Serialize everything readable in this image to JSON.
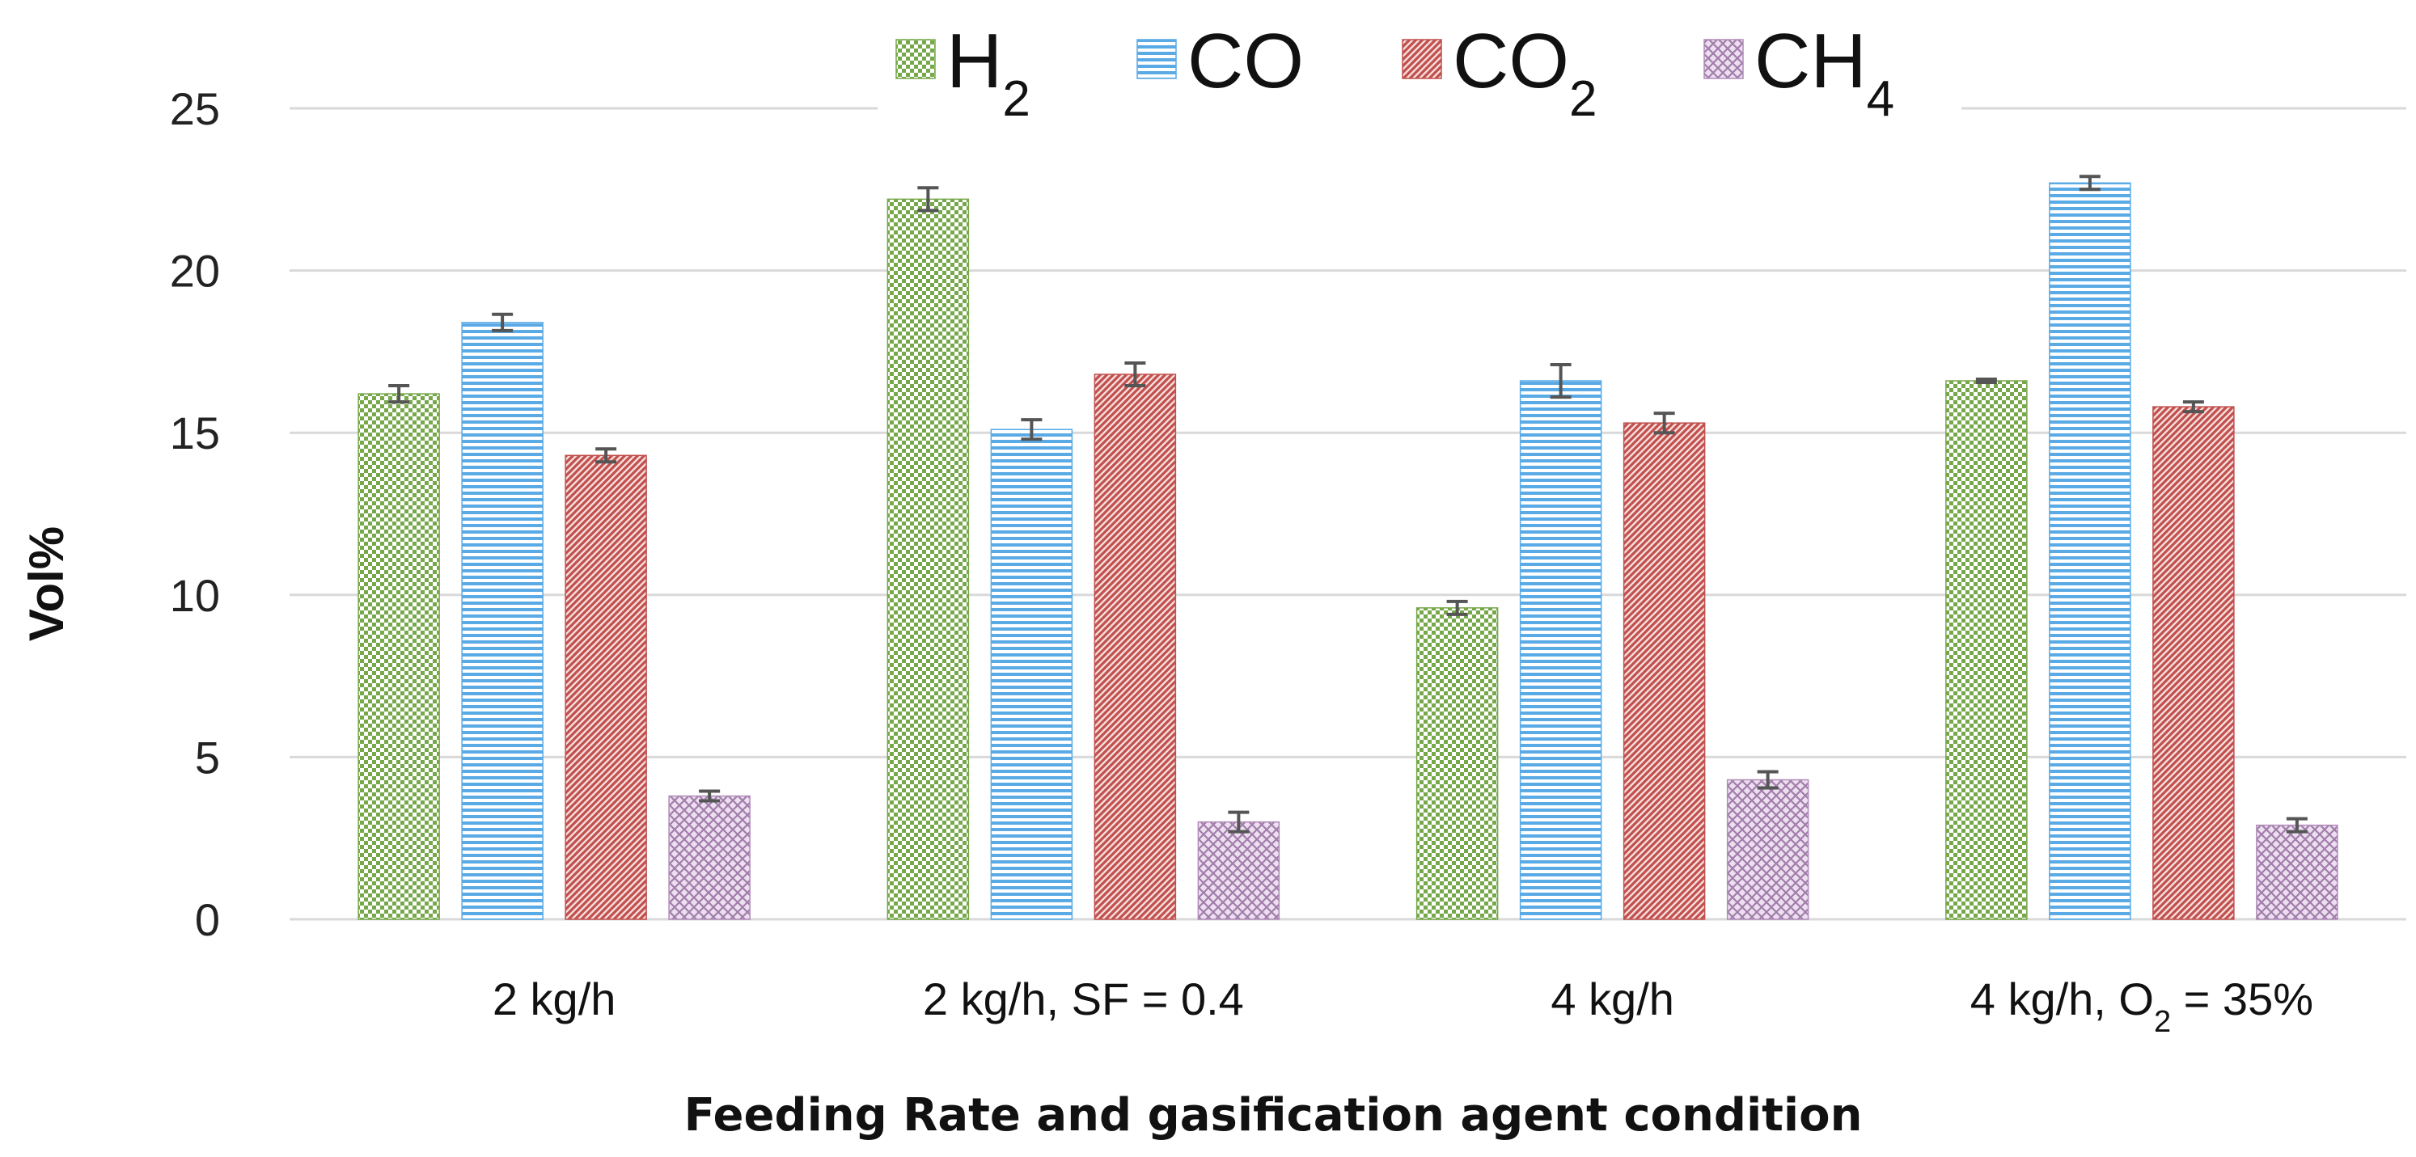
{
  "chart_data": {
    "type": "bar",
    "title": "",
    "xlabel": "Feeding Rate and gasification agent condition",
    "ylabel": "Vol%",
    "ylim": [
      0,
      25
    ],
    "yticks": [
      "0",
      "5",
      "10",
      "15",
      "20",
      "25"
    ],
    "grid": true,
    "legend_position": "top-center",
    "categories": [
      {
        "main": "2 kg/h",
        "sub": "",
        "tail": ""
      },
      {
        "main": "2 kg/h, SF = 0.4",
        "sub": "",
        "tail": ""
      },
      {
        "main": "4 kg/h",
        "sub": "",
        "tail": ""
      },
      {
        "main": "4 kg/h, O",
        "sub": "2",
        "tail": " = 35%"
      }
    ],
    "series": [
      {
        "name": "H",
        "sub": "2",
        "values": [
          16.2,
          22.2,
          9.6,
          16.6
        ],
        "errors": [
          0.25,
          0.35,
          0.2,
          0.05
        ],
        "color": "#76a84a",
        "pattern": "checker"
      },
      {
        "name": "CO",
        "sub": "",
        "values": [
          18.4,
          15.1,
          16.6,
          22.7
        ],
        "errors": [
          0.25,
          0.3,
          0.5,
          0.2
        ],
        "color": "#5aaae6",
        "pattern": "hlines"
      },
      {
        "name": "CO",
        "sub": "2",
        "values": [
          14.3,
          16.8,
          15.3,
          15.8
        ],
        "errors": [
          0.2,
          0.35,
          0.3,
          0.15
        ],
        "color": "#c0504d",
        "pattern": "diag"
      },
      {
        "name": "CH",
        "sub": "4",
        "values": [
          3.8,
          3.0,
          4.3,
          2.9
        ],
        "errors": [
          0.15,
          0.3,
          0.25,
          0.2
        ],
        "color": "#b08cb8",
        "pattern": "cross"
      }
    ]
  }
}
